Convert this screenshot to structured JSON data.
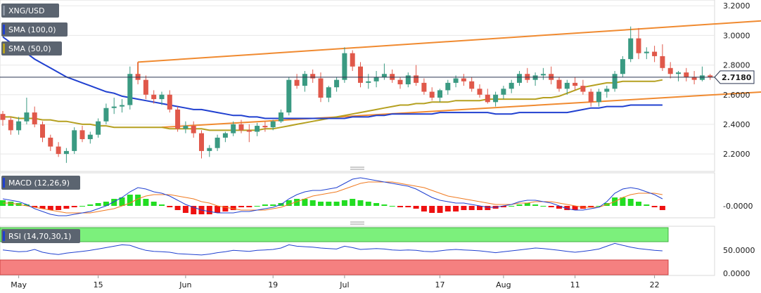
{
  "chart_data": {
    "type": "candlestick",
    "symbol": "XNG/USD",
    "last_price": "2.7180",
    "legend": [
      {
        "label": "XNG/USD",
        "color": "#5b6470"
      },
      {
        "label": "SMA (100,0)",
        "color": "#2040d0"
      },
      {
        "label": "SMA (50,0)",
        "color": "#b5a020"
      }
    ],
    "price_axis": {
      "ticks": [
        "3.2000",
        "3.0000",
        "2.8000",
        "2.6000",
        "2.4000",
        "2.2000"
      ],
      "values": [
        3.2,
        3.0,
        2.8,
        2.6,
        2.4,
        2.2
      ],
      "range": [
        2.12,
        3.22
      ]
    },
    "x_axis": {
      "ticks": [
        "May",
        "15",
        "Jun",
        "19",
        "Jul",
        "17",
        "Aug",
        "11",
        "22"
      ],
      "tick_index": [
        2,
        12,
        23,
        34,
        43,
        55,
        63,
        72,
        82
      ]
    },
    "candles": [
      [
        2.47,
        2.49,
        2.39,
        2.43
      ],
      [
        2.43,
        2.45,
        2.33,
        2.36
      ],
      [
        2.36,
        2.45,
        2.33,
        2.42
      ],
      [
        2.42,
        2.58,
        2.4,
        2.48
      ],
      [
        2.48,
        2.52,
        2.38,
        2.4
      ],
      [
        2.4,
        2.42,
        2.28,
        2.31
      ],
      [
        2.31,
        2.33,
        2.22,
        2.25
      ],
      [
        2.25,
        2.28,
        2.18,
        2.2
      ],
      [
        2.2,
        2.24,
        2.14,
        2.22
      ],
      [
        2.22,
        2.38,
        2.2,
        2.36
      ],
      [
        2.36,
        2.39,
        2.28,
        2.3
      ],
      [
        2.3,
        2.35,
        2.27,
        2.33
      ],
      [
        2.33,
        2.44,
        2.31,
        2.42
      ],
      [
        2.42,
        2.54,
        2.4,
        2.51
      ],
      [
        2.51,
        2.58,
        2.47,
        2.52
      ],
      [
        2.52,
        2.57,
        2.48,
        2.53
      ],
      [
        2.53,
        2.79,
        2.5,
        2.74
      ],
      [
        2.74,
        2.82,
        2.67,
        2.7
      ],
      [
        2.7,
        2.73,
        2.57,
        2.6
      ],
      [
        2.6,
        2.63,
        2.54,
        2.57
      ],
      [
        2.57,
        2.62,
        2.53,
        2.6
      ],
      [
        2.6,
        2.63,
        2.48,
        2.5
      ],
      [
        2.5,
        2.52,
        2.35,
        2.37
      ],
      [
        2.37,
        2.42,
        2.34,
        2.39
      ],
      [
        2.39,
        2.42,
        2.31,
        2.34
      ],
      [
        2.34,
        2.36,
        2.17,
        2.22
      ],
      [
        2.22,
        2.26,
        2.18,
        2.24
      ],
      [
        2.24,
        2.33,
        2.22,
        2.31
      ],
      [
        2.31,
        2.35,
        2.28,
        2.34
      ],
      [
        2.34,
        2.42,
        2.32,
        2.4
      ],
      [
        2.4,
        2.43,
        2.34,
        2.36
      ],
      [
        2.36,
        2.4,
        2.28,
        2.35
      ],
      [
        2.35,
        2.41,
        2.32,
        2.39
      ],
      [
        2.39,
        2.42,
        2.35,
        2.38
      ],
      [
        2.38,
        2.43,
        2.36,
        2.42
      ],
      [
        2.42,
        2.5,
        2.41,
        2.48
      ],
      [
        2.48,
        2.72,
        2.46,
        2.7
      ],
      [
        2.7,
        2.74,
        2.64,
        2.66
      ],
      [
        2.66,
        2.76,
        2.62,
        2.74
      ],
      [
        2.74,
        2.77,
        2.68,
        2.71
      ],
      [
        2.71,
        2.75,
        2.55,
        2.58
      ],
      [
        2.58,
        2.66,
        2.55,
        2.65
      ],
      [
        2.65,
        2.72,
        2.62,
        2.7
      ],
      [
        2.7,
        2.92,
        2.68,
        2.88
      ],
      [
        2.88,
        2.9,
        2.76,
        2.79
      ],
      [
        2.79,
        2.82,
        2.65,
        2.68
      ],
      [
        2.68,
        2.74,
        2.64,
        2.69
      ],
      [
        2.69,
        2.76,
        2.65,
        2.72
      ],
      [
        2.72,
        2.81,
        2.7,
        2.74
      ],
      [
        2.74,
        2.77,
        2.68,
        2.7
      ],
      [
        2.7,
        2.72,
        2.64,
        2.67
      ],
      [
        2.67,
        2.75,
        2.65,
        2.73
      ],
      [
        2.73,
        2.8,
        2.66,
        2.68
      ],
      [
        2.68,
        2.71,
        2.6,
        2.62
      ],
      [
        2.62,
        2.65,
        2.56,
        2.58
      ],
      [
        2.58,
        2.64,
        2.55,
        2.63
      ],
      [
        2.63,
        2.7,
        2.6,
        2.68
      ],
      [
        2.68,
        2.73,
        2.65,
        2.71
      ],
      [
        2.71,
        2.74,
        2.66,
        2.69
      ],
      [
        2.69,
        2.72,
        2.62,
        2.64
      ]
    ],
    "candles_b": [
      [
        2.64,
        2.67,
        2.58,
        2.6
      ],
      [
        2.6,
        2.64,
        2.54,
        2.55
      ],
      [
        2.55,
        2.62,
        2.52,
        2.6
      ],
      [
        2.6,
        2.66,
        2.57,
        2.64
      ],
      [
        2.64,
        2.7,
        2.61,
        2.68
      ],
      [
        2.68,
        2.76,
        2.66,
        2.74
      ],
      [
        2.74,
        2.78,
        2.68,
        2.7
      ],
      [
        2.7,
        2.75,
        2.66,
        2.73
      ],
      [
        2.73,
        2.78,
        2.7,
        2.74
      ],
      [
        2.74,
        2.79,
        2.67,
        2.7
      ],
      [
        2.7,
        2.72,
        2.62,
        2.64
      ],
      [
        2.64,
        2.7,
        2.6,
        2.68
      ],
      [
        2.68,
        2.72,
        2.63,
        2.66
      ],
      [
        2.66,
        2.7,
        2.6,
        2.62
      ],
      [
        2.62,
        2.64,
        2.52,
        2.55
      ],
      [
        2.55,
        2.64,
        2.52,
        2.62
      ],
      [
        2.62,
        2.66,
        2.58,
        2.64
      ],
      [
        2.64,
        2.76,
        2.62,
        2.74
      ],
      [
        2.74,
        2.86,
        2.72,
        2.84
      ],
      [
        2.84,
        3.06,
        2.82,
        2.98
      ],
      [
        2.98,
        3.05,
        2.84,
        2.88
      ],
      [
        2.88,
        2.92,
        2.84,
        2.89
      ],
      [
        2.89,
        2.93,
        2.82,
        2.86
      ],
      [
        2.86,
        2.94,
        2.76,
        2.78
      ],
      [
        2.78,
        2.82,
        2.71,
        2.74
      ],
      [
        2.74,
        2.76,
        2.69,
        2.75
      ],
      [
        2.75,
        2.78,
        2.69,
        2.72
      ],
      [
        2.72,
        2.76,
        2.67,
        2.7
      ],
      [
        2.7,
        2.79,
        2.69,
        2.73
      ],
      [
        2.73,
        2.74,
        2.7,
        2.72
      ]
    ],
    "sma100": [
      2.99,
      2.95,
      2.91,
      2.88,
      2.84,
      2.81,
      2.78,
      2.75,
      2.72,
      2.7,
      2.68,
      2.66,
      2.64,
      2.62,
      2.61,
      2.59,
      2.58,
      2.57,
      2.56,
      2.55,
      2.54,
      2.53,
      2.52,
      2.51,
      2.5,
      2.5,
      2.49,
      2.48,
      2.47,
      2.46,
      2.46,
      2.45,
      2.45,
      2.44,
      2.44,
      2.44,
      2.44,
      2.44,
      2.44,
      2.44,
      2.44,
      2.44,
      2.44,
      2.44,
      2.45,
      2.45,
      2.45,
      2.46,
      2.46,
      2.47,
      2.47,
      2.47,
      2.47,
      2.47,
      2.47,
      2.48,
      2.48,
      2.48,
      2.48,
      2.48,
      2.48,
      2.48,
      2.47,
      2.47,
      2.47,
      2.48,
      2.48,
      2.48,
      2.48,
      2.48,
      2.48,
      2.48,
      2.49,
      2.5,
      2.51,
      2.51,
      2.52,
      2.52,
      2.52,
      2.53,
      2.53,
      2.53,
      2.53,
      2.53
    ],
    "sma50": [
      2.45,
      2.45,
      2.44,
      2.44,
      2.44,
      2.43,
      2.43,
      2.42,
      2.42,
      2.41,
      2.4,
      2.4,
      2.39,
      2.39,
      2.38,
      2.38,
      2.38,
      2.38,
      2.38,
      2.38,
      2.38,
      2.37,
      2.37,
      2.37,
      2.37,
      2.37,
      2.36,
      2.36,
      2.36,
      2.36,
      2.36,
      2.36,
      2.36,
      2.37,
      2.37,
      2.38,
      2.39,
      2.4,
      2.41,
      2.42,
      2.43,
      2.44,
      2.45,
      2.46,
      2.47,
      2.48,
      2.49,
      2.5,
      2.51,
      2.52,
      2.53,
      2.53,
      2.54,
      2.54,
      2.55,
      2.55,
      2.55,
      2.56,
      2.56,
      2.56,
      2.56,
      2.57,
      2.57,
      2.57,
      2.57,
      2.57,
      2.57,
      2.57,
      2.58,
      2.58,
      2.59,
      2.61,
      2.63,
      2.65,
      2.66,
      2.67,
      2.68,
      2.68,
      2.69,
      2.69,
      2.69,
      2.69,
      2.69,
      2.7
    ],
    "channel_upper": {
      "from": [
        17,
        2.82
      ],
      "to": [
        96,
        3.1
      ]
    },
    "channel_lower": {
      "from": [
        20,
        2.38
      ],
      "to": [
        96,
        2.62
      ]
    },
    "macd": {
      "label": "MACD (12,26,9)",
      "zero_label": "-0.0000",
      "macd": [
        0.05,
        0.04,
        0.03,
        0.01,
        -0.02,
        -0.04,
        -0.06,
        -0.07,
        -0.07,
        -0.06,
        -0.05,
        -0.04,
        -0.02,
        0.0,
        0.03,
        0.06,
        0.1,
        0.13,
        0.12,
        0.1,
        0.09,
        0.07,
        0.04,
        0.01,
        -0.01,
        -0.03,
        -0.04,
        -0.05,
        -0.05,
        -0.05,
        -0.04,
        -0.04,
        -0.03,
        -0.02,
        -0.01,
        0.01,
        0.05,
        0.08,
        0.1,
        0.11,
        0.11,
        0.12,
        0.13,
        0.16,
        0.19,
        0.2,
        0.19,
        0.18,
        0.17,
        0.16,
        0.15,
        0.14,
        0.12,
        0.09,
        0.06,
        0.04,
        0.03,
        0.02,
        0.02,
        0.01,
        0.0,
        -0.01,
        -0.01,
        0.0,
        0.01,
        0.03,
        0.04,
        0.04,
        0.03,
        0.02,
        0.0,
        -0.02,
        -0.03,
        -0.03,
        -0.02,
        -0.01,
        0.03,
        0.09,
        0.12,
        0.13,
        0.12,
        0.1,
        0.08,
        0.05
      ],
      "signal": [
        0.02,
        0.02,
        0.01,
        0.0,
        -0.01,
        -0.02,
        -0.03,
        -0.04,
        -0.05,
        -0.05,
        -0.05,
        -0.05,
        -0.04,
        -0.03,
        -0.02,
        0.0,
        0.02,
        0.05,
        0.07,
        0.08,
        0.08,
        0.08,
        0.07,
        0.06,
        0.05,
        0.03,
        0.02,
        0.0,
        -0.01,
        -0.02,
        -0.03,
        -0.03,
        -0.03,
        -0.03,
        -0.02,
        -0.01,
        0.01,
        0.03,
        0.05,
        0.07,
        0.08,
        0.09,
        0.1,
        0.12,
        0.14,
        0.16,
        0.17,
        0.17,
        0.17,
        0.17,
        0.16,
        0.15,
        0.14,
        0.13,
        0.11,
        0.09,
        0.07,
        0.06,
        0.05,
        0.04,
        0.03,
        0.02,
        0.01,
        0.01,
        0.01,
        0.02,
        0.02,
        0.03,
        0.03,
        0.03,
        0.02,
        0.01,
        0.0,
        -0.01,
        -0.01,
        -0.01,
        0.01,
        0.03,
        0.06,
        0.08,
        0.09,
        0.09,
        0.09,
        0.08
      ],
      "hist": [
        0.04,
        0.03,
        0.02,
        0.01,
        -0.01,
        -0.02,
        -0.03,
        -0.03,
        -0.02,
        -0.01,
        0.0,
        0.01,
        0.02,
        0.03,
        0.05,
        0.06,
        0.08,
        0.08,
        0.05,
        0.03,
        0.01,
        -0.01,
        -0.03,
        -0.05,
        -0.06,
        -0.06,
        -0.06,
        -0.05,
        -0.04,
        -0.03,
        -0.01,
        -0.01,
        0.0,
        0.01,
        0.01,
        0.02,
        0.04,
        0.05,
        0.05,
        0.04,
        0.03,
        0.03,
        0.03,
        0.04,
        0.05,
        0.04,
        0.03,
        0.02,
        0.01,
        0.0,
        -0.01,
        -0.01,
        -0.02,
        -0.04,
        -0.05,
        -0.05,
        -0.04,
        -0.04,
        -0.03,
        -0.03,
        -0.03,
        -0.03,
        -0.02,
        -0.01,
        0.0,
        0.01,
        0.02,
        0.01,
        0.0,
        -0.01,
        -0.02,
        -0.03,
        -0.03,
        -0.02,
        -0.01,
        0.0,
        0.02,
        0.06,
        0.06,
        0.05,
        0.03,
        0.01,
        -0.01,
        -0.03
      ]
    },
    "rsi": {
      "label": "RSI (14,70,30,1)",
      "ticks": [
        "50.0000",
        "0.0000"
      ],
      "values": [
        52,
        50,
        48,
        49,
        53,
        47,
        44,
        42,
        45,
        47,
        49,
        51,
        54,
        57,
        60,
        63,
        62,
        56,
        51,
        49,
        48,
        47,
        44,
        43,
        42,
        41,
        43,
        46,
        48,
        51,
        50,
        49,
        51,
        52,
        53,
        56,
        63,
        60,
        59,
        58,
        56,
        55,
        54,
        60,
        57,
        53,
        54,
        55,
        54,
        52,
        51,
        52,
        51,
        49,
        48,
        50,
        52,
        53,
        52,
        51,
        50,
        48,
        46,
        48,
        50,
        52,
        54,
        56,
        55,
        53,
        51,
        49,
        47,
        49,
        51,
        54,
        60,
        66,
        62,
        58,
        55,
        53,
        51,
        50
      ]
    }
  }
}
